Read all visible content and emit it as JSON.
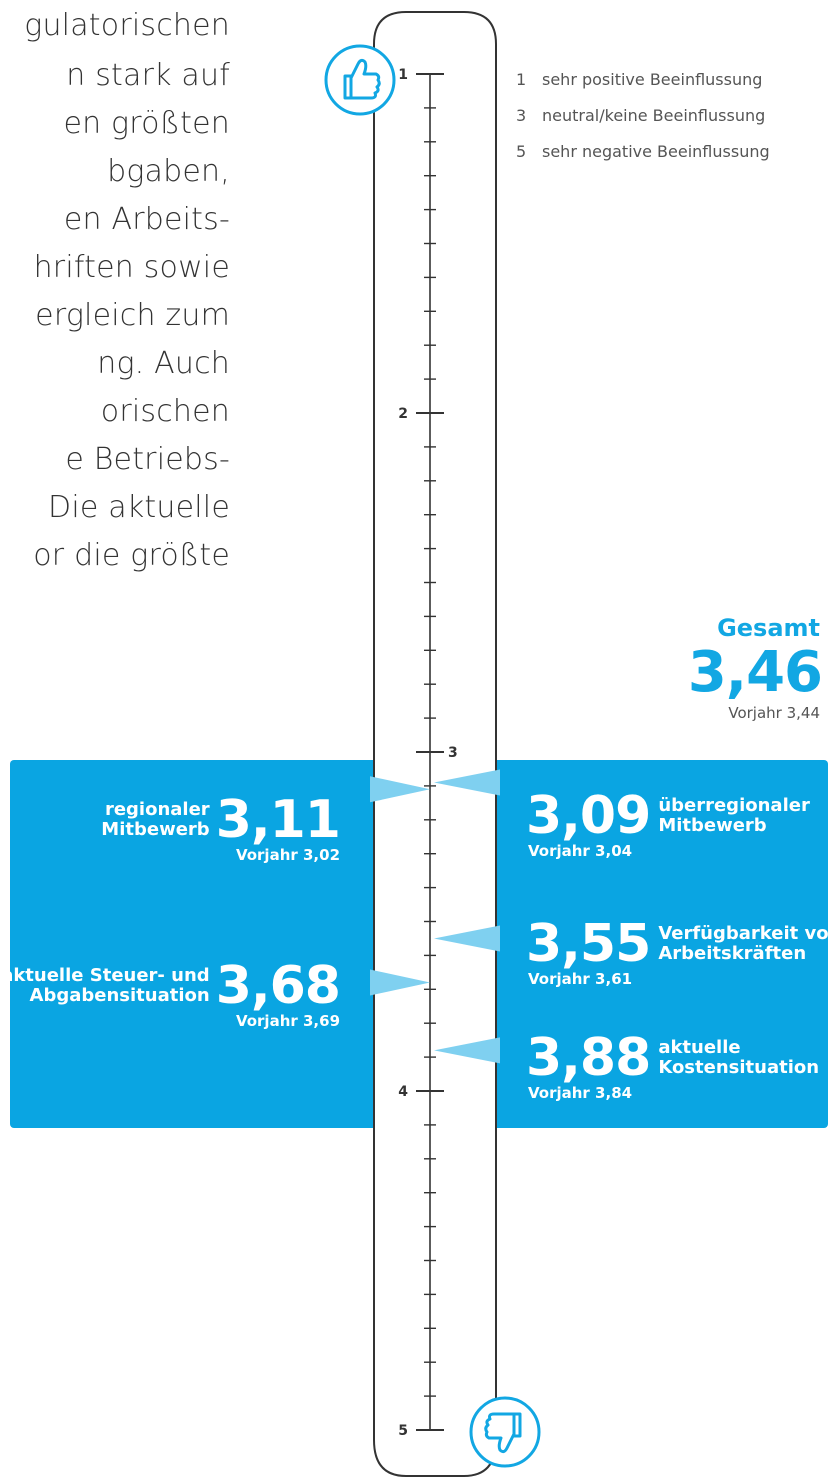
{
  "paragraph_lines": [
    "gulatorischen",
    "n stark auf",
    "en größten",
    "bgaben,",
    "en Arbeits-",
    "hriften sowie",
    "ergleich zum",
    "ng. Auch",
    "orischen",
    "e Betriebs-",
    "Die aktuelle",
    "or die größte"
  ],
  "legend": [
    {
      "num": "1",
      "text": "sehr positive Beeinflussung"
    },
    {
      "num": "3",
      "text": "neutral/keine Beeinflussung"
    },
    {
      "num": "5",
      "text": "sehr negative Beeinflussung"
    }
  ],
  "gesamt": {
    "label": "Gesamt",
    "value": "3,46",
    "prev": "Vorjahr 3,44"
  },
  "colors": {
    "accent": "#0aa5e2",
    "pointer": "#7fd0f0",
    "ink": "#333333"
  },
  "icons": {
    "top": "thumbs-up-icon",
    "bottom": "thumbs-down-icon"
  },
  "chart_data": {
    "type": "scale",
    "axis": {
      "min": 1,
      "max": 5,
      "labels": [
        "1",
        "2",
        "3",
        "4",
        "5"
      ],
      "minor_step": 0.1
    },
    "items": [
      {
        "key": "regional",
        "side": "left",
        "label_lines": [
          "regionaler",
          "Mitbewerb"
        ],
        "value": 3.11,
        "value_text": "3,11",
        "prev_text": "Vorjahr 3,02"
      },
      {
        "key": "steuer",
        "side": "left",
        "label_lines": [
          "aktuelle Steuer- und",
          "Abgabensituation"
        ],
        "value": 3.68,
        "value_text": "3,68",
        "prev_text": "Vorjahr 3,69"
      },
      {
        "key": "ueberregional",
        "side": "right",
        "label_lines": [
          "überregionaler",
          "Mitbewerb"
        ],
        "value": 3.09,
        "value_text": "3,09",
        "prev_text": "Vorjahr 3,04"
      },
      {
        "key": "arbeitskraefte",
        "side": "right",
        "label_lines": [
          "Verfügbarkeit von",
          "Arbeitskräften"
        ],
        "value": 3.55,
        "value_text": "3,55",
        "prev_text": "Vorjahr 3,61"
      },
      {
        "key": "kosten",
        "side": "right",
        "label_lines": [
          "aktuelle",
          "Kostensituation"
        ],
        "value": 3.88,
        "value_text": "3,88",
        "prev_text": "Vorjahr 3,84"
      }
    ],
    "overall": {
      "value": 3.46
    }
  }
}
